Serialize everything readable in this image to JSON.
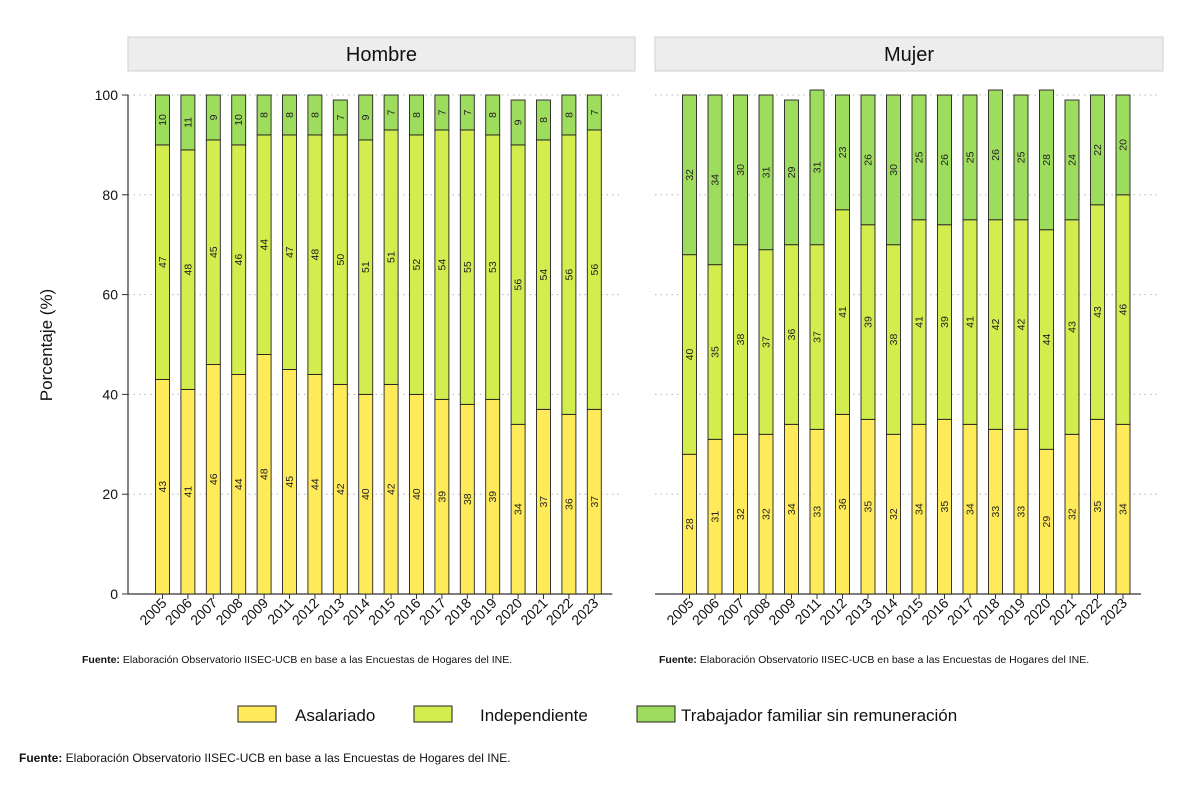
{
  "chart_data": {
    "type": "bar",
    "stacked": true,
    "ylabel": "Porcentaje (%)",
    "ylim": [
      0,
      100
    ],
    "yticks": [
      0,
      20,
      40,
      60,
      80,
      100
    ],
    "grid": true,
    "categories": [
      "2005",
      "2006",
      "2007",
      "2008",
      "2009",
      "2011",
      "2012",
      "2013",
      "2014",
      "2015",
      "2016",
      "2017",
      "2018",
      "2019",
      "2020",
      "2021",
      "2022",
      "2023"
    ],
    "legend_position": "bottom",
    "colors": {
      "Asalariado": "#ffeb5a",
      "Independiente": "#d3ec4e",
      "Trabajador familiar sin remuneración": "#9edc5e"
    },
    "series_names": [
      "Asalariado",
      "Independiente",
      "Trabajador familiar sin remuneración"
    ],
    "panels": [
      {
        "title": "Hombre",
        "series": [
          {
            "name": "Asalariado",
            "values": [
              43,
              41,
              46,
              44,
              48,
              45,
              44,
              42,
              40,
              42,
              40,
              39,
              38,
              39,
              34,
              37,
              36,
              37
            ]
          },
          {
            "name": "Independiente",
            "values": [
              47,
              48,
              45,
              46,
              44,
              47,
              48,
              50,
              51,
              51,
              52,
              54,
              55,
              53,
              56,
              54,
              56,
              56
            ]
          },
          {
            "name": "Trabajador familiar sin remuneración",
            "values": [
              10,
              11,
              9,
              10,
              8,
              8,
              8,
              7,
              9,
              7,
              8,
              7,
              7,
              8,
              9,
              8,
              8,
              7
            ]
          }
        ],
        "source_bold": "Fuente:",
        "source_text": " Elaboración Observatorio IISEC-UCB en base a las Encuestas de Hogares del INE."
      },
      {
        "title": "Mujer",
        "series": [
          {
            "name": "Asalariado",
            "values": [
              28,
              31,
              32,
              32,
              34,
              33,
              36,
              35,
              32,
              34,
              35,
              34,
              33,
              33,
              29,
              32,
              35,
              34
            ]
          },
          {
            "name": "Independiente",
            "values": [
              40,
              35,
              38,
              37,
              36,
              37,
              41,
              39,
              38,
              41,
              39,
              41,
              42,
              42,
              44,
              43,
              43,
              46
            ]
          },
          {
            "name": "Trabajador familiar sin remuneración",
            "values": [
              32,
              34,
              30,
              31,
              29,
              31,
              23,
              26,
              30,
              25,
              26,
              25,
              26,
              25,
              28,
              24,
              22,
              20
            ]
          }
        ],
        "source_bold": "Fuente:",
        "source_text": " Elaboración Observatorio IISEC-UCB en base a las Encuestas de Hogares del INE."
      }
    ]
  },
  "footer": {
    "source_bold": "Fuente:",
    "source_text": " Elaboración Observatorio IISEC-UCB en base a las Encuestas de Hogares del INE."
  }
}
